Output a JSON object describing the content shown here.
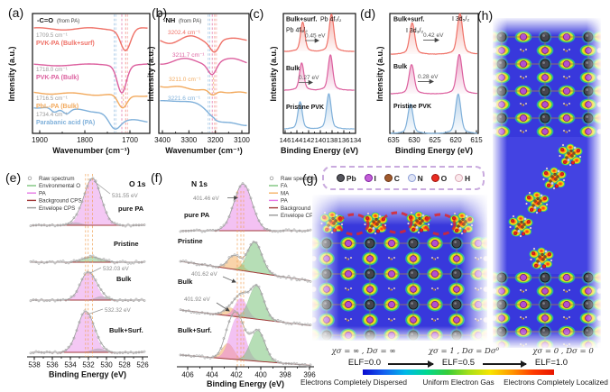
{
  "colors": {
    "red": "#ef7167",
    "pink": "#dc5f9e",
    "orange": "#f2a95c",
    "blue": "#7fb0da",
    "fa": "#7cc47c",
    "ma": "#f5b266",
    "pa": "#e678e6",
    "env_o": "#7cc47c",
    "bg_cps": "#a23a3a",
    "env_cps": "#999999",
    "dash_orange": "#f0a050"
  },
  "colorbar": [
    "#0a0ad0",
    "#1560f0",
    "#00b8e8",
    "#00d890",
    "#38cc38",
    "#a8e018",
    "#f8e400",
    "#ff9800",
    "#ff3c00",
    "#e81600"
  ],
  "panels": {
    "a": {
      "tag": "(a)",
      "type": "line",
      "title": "-C=O",
      "title_suffix": "(from PA)",
      "xlabel": "Wavenumber (cm⁻¹)",
      "ylabel": "Intensity (a.u.)",
      "x_ticks": [
        "1900",
        "1800",
        "1700"
      ],
      "x_range": [
        1900,
        1650
      ],
      "curves": [
        {
          "label": "PVK-PA (Bulk+surf)",
          "value": "1709.5 cm⁻¹",
          "peak_cm": 1709.5,
          "color": "red"
        },
        {
          "label": "PVK-PA (Bulk)",
          "value": "1718.0 cm⁻¹",
          "peak_cm": 1718.0,
          "color": "pink"
        },
        {
          "label": "PbI₂-PA (Bulk)",
          "value": "1716.5 cm⁻¹",
          "peak_cm": 1716.5,
          "color": "orange"
        },
        {
          "label": "Parabanic acid (PA)",
          "value": "1734.4 cm⁻¹",
          "peak_cm": 1734.4,
          "color": "blue"
        }
      ]
    },
    "b": {
      "tag": "(b)",
      "type": "line",
      "title": "-NH",
      "title_suffix": "(from PA)",
      "xlabel": "Wavenumber (cm⁻¹)",
      "ylabel": "Intensity (a.u.)",
      "x_ticks": [
        "3400",
        "3300",
        "3200",
        "3100"
      ],
      "x_range": [
        3400,
        3100
      ],
      "curves": [
        {
          "value": "3202.4 cm⁻¹",
          "peak_cm": 3202.4,
          "color": "red"
        },
        {
          "value": "3211.7 cm⁻¹",
          "peak_cm": 3211.7,
          "color": "pink"
        },
        {
          "value": "3211.0 cm⁻¹",
          "peak_cm": 3211.0,
          "color": "orange"
        },
        {
          "value": "3221.6 cm⁻¹",
          "peak_cm": 3221.6,
          "color": "blue"
        }
      ]
    },
    "c": {
      "tag": "(c)",
      "type": "line",
      "xlabel": "Binding Energy (eV)",
      "ylabel": "Intensity (a.u.)",
      "x_ticks": [
        "146",
        "144",
        "142",
        "140",
        "138",
        "136",
        "134"
      ],
      "x_range": [
        146.3,
        134
      ],
      "doublet_labels": [
        "Pb 4f₅/₂",
        "Pb 4f₇/₂"
      ],
      "curves": [
        {
          "label": "Bulk+surf.",
          "shift": "0.45 eV",
          "p1": 143.0,
          "p2": 138.1,
          "color": "red"
        },
        {
          "label": "Bulk",
          "shift": "0.27 eV",
          "p1": 143.18,
          "p2": 138.28,
          "color": "pink"
        },
        {
          "label": "Pristine PVK",
          "p1": 143.45,
          "p2": 138.55,
          "color": "blue"
        }
      ]
    },
    "d": {
      "tag": "(d)",
      "type": "line",
      "xlabel": "Binding Energy (eV)",
      "ylabel": "Intensity (a.u.)",
      "x_ticks": [
        "635",
        "630",
        "625",
        "620",
        "615"
      ],
      "x_range": [
        636,
        614.5
      ],
      "doublet_labels": [
        "I 3d₃/₂",
        "I 3d₅/₂"
      ],
      "curves": [
        {
          "label": "Bulk+surf.",
          "shift": "0.42 eV",
          "p1": 630.48,
          "p2": 618.98,
          "color": "red"
        },
        {
          "label": "Bulk",
          "shift": "0.28 eV",
          "p1": 630.62,
          "p2": 619.12,
          "color": "pink"
        },
        {
          "label": "Pristine PVK",
          "p1": 630.9,
          "p2": 619.4,
          "color": "blue"
        }
      ]
    },
    "e": {
      "tag": "(e)",
      "type": "line",
      "title": "O 1s",
      "xlabel": "Binding Energy (eV)",
      "x_ticks": [
        "538",
        "536",
        "534",
        "532",
        "530",
        "528",
        "526"
      ],
      "legend": [
        "Raw spectrum",
        "Environmental O",
        "PA",
        "Background CPS",
        "Envelope CPS"
      ],
      "spectra": [
        {
          "label": "pure PA",
          "annotation": "531.55 eV",
          "peak_ev": 531.55
        },
        {
          "label": "Pristine"
        },
        {
          "label": "Bulk",
          "annotation": "532.03 eV",
          "peak_ev": 532.03
        },
        {
          "label": "Bulk+Surf.",
          "annotation": "532.32 eV",
          "peak_ev": 532.32
        }
      ]
    },
    "f": {
      "tag": "(f)",
      "type": "line",
      "title": "N 1s",
      "xlabel": "Binding Energy (eV)",
      "x_ticks": [
        "406",
        "404",
        "402",
        "400",
        "398",
        "396"
      ],
      "legend": [
        "Raw spectrum",
        "FA",
        "MA",
        "PA",
        "Background CPS",
        "Envelope CPS"
      ],
      "spectra": [
        {
          "label": "pure PA",
          "annotation": "401.46 eV",
          "peak_ev": 401.46
        },
        {
          "label": "Pristine"
        },
        {
          "label": "Bulk",
          "annotation": "401.62 eV",
          "peak_ev": 401.62
        },
        {
          "label": "Bulk+Surf.",
          "annotation": "401.92 eV",
          "peak_ev": 401.92
        }
      ]
    },
    "g": {
      "tag": "(g)",
      "atoms": [
        {
          "symbol": "Pb",
          "fill": "#55555c",
          "ring": "#1d1d22"
        },
        {
          "symbol": "I",
          "fill": "#c45fd8",
          "ring": "#7c1f9e"
        },
        {
          "symbol": "C",
          "fill": "#a05a2c",
          "ring": "#6a3414"
        },
        {
          "symbol": "N",
          "fill": "#dfe4f5",
          "ring": "#8d9fd6"
        },
        {
          "symbol": "O",
          "fill": "#ea2b20",
          "ring": "#9c120c"
        },
        {
          "symbol": "H",
          "fill": "#fbe9ec",
          "ring": "#d8a8b4"
        }
      ]
    },
    "h": {
      "tag": "(h)"
    }
  },
  "elf": {
    "formulas": [
      "χσ = ∞ ,  Dσ = ∞",
      "χσ = 1 ,  Dσ = Dσ⁰",
      "χσ = 0 ,  Dσ = 0"
    ],
    "values": [
      "ELF=0.0",
      "ELF=0.5",
      "ELF=1.0"
    ],
    "bar_labels": [
      "Electrons Completely Dispersed",
      "Uniform Electron Gas",
      "Electrons Completely Localized"
    ]
  }
}
